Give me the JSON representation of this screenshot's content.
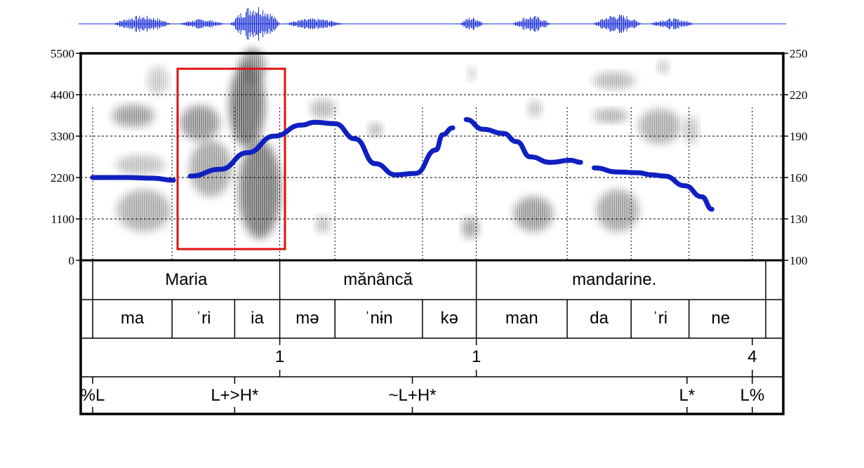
{
  "colors": {
    "waveform": "#1a2ed6",
    "pitch_track": "#1020c0",
    "highlight_box": "#e01010",
    "spectrogram": "#333333",
    "frame": "#000000"
  },
  "chart_data": {
    "type": "line",
    "left_axis": {
      "ticks": [
        "5500",
        "4400",
        "3300",
        "2200",
        "1100",
        "0"
      ],
      "range": [
        0,
        5500
      ]
    },
    "right_axis": {
      "ticks": [
        "250",
        "220",
        "190",
        "160",
        "130",
        "100"
      ],
      "range": [
        100,
        250
      ]
    },
    "time_range": [
      0,
      1
    ],
    "series": [
      {
        "segments": [
          [
            [
              0.0,
              160
            ],
            [
              0.05,
              160
            ],
            [
              0.09,
              159.5
            ],
            [
              0.12,
              158
            ]
          ],
          [
            [
              0.145,
              161
            ],
            [
              0.19,
              166
            ],
            [
              0.23,
              178
            ],
            [
              0.27,
              190
            ],
            [
              0.31,
              198
            ],
            [
              0.33,
              200
            ],
            [
              0.36,
              199
            ],
            [
              0.39,
              188
            ],
            [
              0.42,
              170
            ],
            [
              0.45,
              162
            ],
            [
              0.48,
              163
            ],
            [
              0.51,
              180
            ],
            [
              0.52,
              191
            ],
            [
              0.535,
              196
            ]
          ],
          [
            [
              0.555,
              202
            ],
            [
              0.58,
              195
            ],
            [
              0.61,
              192
            ],
            [
              0.63,
              186
            ],
            [
              0.65,
              175
            ],
            [
              0.68,
              171
            ],
            [
              0.71,
              172.5
            ],
            [
              0.725,
              171
            ]
          ],
          [
            [
              0.745,
              167
            ],
            [
              0.78,
              164
            ],
            [
              0.81,
              163.5
            ],
            [
              0.83,
              162
            ],
            [
              0.85,
              161
            ],
            [
              0.88,
              154
            ],
            [
              0.905,
              146
            ],
            [
              0.92,
              137
            ]
          ]
        ]
      }
    ]
  },
  "tiers": {
    "words": [
      {
        "text": "Maria",
        "start": 0.0,
        "end": 0.278
      },
      {
        "text": "mănâncă",
        "start": 0.278,
        "end": 0.57
      },
      {
        "text": "mandarine.",
        "start": 0.57,
        "end": 0.98
      }
    ],
    "syllables": [
      {
        "text": "ma",
        "start": 0.0,
        "end": 0.118
      },
      {
        "text": "ˈri",
        "start": 0.118,
        "end": 0.211
      },
      {
        "text": "ia",
        "start": 0.211,
        "end": 0.278
      },
      {
        "text": "mə",
        "start": 0.278,
        "end": 0.36
      },
      {
        "text": "ˈnɨn",
        "start": 0.36,
        "end": 0.49
      },
      {
        "text": "kə",
        "start": 0.49,
        "end": 0.57
      },
      {
        "text": "man",
        "start": 0.57,
        "end": 0.705
      },
      {
        "text": "da",
        "start": 0.705,
        "end": 0.8
      },
      {
        "text": "ˈri",
        "start": 0.8,
        "end": 0.886
      },
      {
        "text": "ne",
        "start": 0.886,
        "end": 0.98
      }
    ],
    "breaks": [
      {
        "text": "1",
        "time": 0.278
      },
      {
        "text": "1",
        "time": 0.57
      },
      {
        "text": "4",
        "time": 0.98
      }
    ],
    "tones": [
      {
        "text": "%L",
        "time": 0.0
      },
      {
        "text": "L+>H*",
        "time": 0.211
      },
      {
        "text": "~L+H*",
        "time": 0.475
      },
      {
        "text": "L*",
        "time": 0.883
      },
      {
        "text": "L%",
        "time": 0.98
      }
    ]
  }
}
